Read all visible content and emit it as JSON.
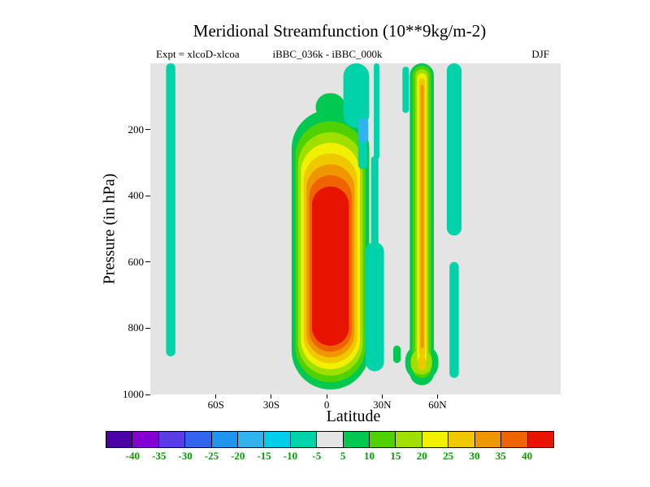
{
  "title": "Meridional Streamfunction (10**9kg/m-2)",
  "subtitle": {
    "left": "Expt = xlcoD-xlcoa",
    "center": "iBBC_036k - iBBC_000k",
    "right": "DJF"
  },
  "plot": {
    "background": "#e4e4e4"
  },
  "colorbar": {
    "labels": [
      "-40",
      "-35",
      "-30",
      "-25",
      "-20",
      "-15",
      "-10",
      "-5",
      "5",
      "10",
      "15",
      "20",
      "25",
      "30",
      "35",
      "40"
    ],
    "colors": [
      "#4e00a8",
      "#8400d2",
      "#5a3ce6",
      "#3264f0",
      "#1e96f0",
      "#30b4f0",
      "#00ccec",
      "#00d2aa",
      "#e4e4e4",
      "#00c850",
      "#50d200",
      "#a0e000",
      "#f0f000",
      "#f0c800",
      "#f09600",
      "#f06400",
      "#e61400"
    ],
    "label_color": "#00a000"
  },
  "chart_data": {
    "type": "filled_contour",
    "title": "Meridional Streamfunction (10**9kg/m-2)",
    "units": "10**9 kg/m-2",
    "season": "DJF",
    "experiment": "xlcoD-xlcoa",
    "difference": "iBBC_036k - iBBC_000k",
    "xlabel": "Latitude",
    "ylabel": "Pressure (in hPa)",
    "x_axis": {
      "ticks": [
        {
          "label": "60S",
          "value": -60
        },
        {
          "label": "30S",
          "value": -30
        },
        {
          "label": "0",
          "value": 0
        },
        {
          "label": "30N",
          "value": 30
        },
        {
          "label": "60N",
          "value": 60
        }
      ],
      "zero_fraction": 0.43,
      "fraction_per_degree": 0.0045
    },
    "y_axis": {
      "ticks": [
        {
          "label": "200",
          "value": 200
        },
        {
          "label": "400",
          "value": 400
        },
        {
          "label": "600",
          "value": 600
        },
        {
          "label": "800",
          "value": 800
        },
        {
          "label": "1000",
          "value": 1000
        }
      ],
      "range": [
        0,
        1000
      ]
    },
    "contour_levels": [
      -40,
      -35,
      -30,
      -25,
      -20,
      -15,
      -10,
      -5,
      5,
      10,
      15,
      20,
      25,
      30,
      35,
      40
    ],
    "features": [
      {
        "name": "antarctic-negative-stripe",
        "value": -7,
        "lat": [
          -87,
          -82
        ],
        "p": [
          0,
          885
        ]
      },
      {
        "name": "hadley-cell-level-5",
        "value": 7,
        "lat": [
          -19,
          23
        ],
        "p": [
          140,
          985
        ]
      },
      {
        "name": "hadley-cell-top-nub",
        "value": 7,
        "lat": [
          -6,
          10
        ],
        "p": [
          90,
          175
        ]
      },
      {
        "name": "hadley-cell-level-10",
        "value": 12,
        "lat": [
          -17,
          21
        ],
        "p": [
          175,
          963
        ]
      },
      {
        "name": "hadley-cell-level-15",
        "value": 17,
        "lat": [
          -15.5,
          19.5
        ],
        "p": [
          208,
          943
        ]
      },
      {
        "name": "hadley-cell-level-20",
        "value": 22,
        "lat": [
          -14,
          18
        ],
        "p": [
          240,
          924
        ]
      },
      {
        "name": "hadley-cell-level-25",
        "value": 27,
        "lat": [
          -12.5,
          16.5
        ],
        "p": [
          272,
          906
        ]
      },
      {
        "name": "hadley-cell-level-30",
        "value": 32,
        "lat": [
          -11,
          15
        ],
        "p": [
          305,
          888
        ]
      },
      {
        "name": "hadley-cell-level-35",
        "value": 37,
        "lat": [
          -9.5,
          13.5
        ],
        "p": [
          338,
          871
        ]
      },
      {
        "name": "hadley-cell-level-40",
        "value": 42,
        "lat": [
          -8,
          12
        ],
        "p": [
          372,
          853
        ]
      },
      {
        "name": "tropical-upper-negative-blob",
        "value": -7,
        "lat": [
          9,
          23
        ],
        "p": [
          0,
          195
        ]
      },
      {
        "name": "tropical-upper-negative-stalk",
        "value": -7,
        "lat": [
          17,
          22
        ],
        "p": [
          150,
          320
        ]
      },
      {
        "name": "tropical-upper-blue-spot",
        "value": -17,
        "lat": [
          17,
          22.5
        ],
        "p": [
          165,
          240
        ]
      },
      {
        "name": "subtropical-negative-spike",
        "value": -7,
        "lat": [
          25.5,
          28.5
        ],
        "p": [
          0,
          290
        ]
      },
      {
        "name": "subtropical-negative-link",
        "value": -7,
        "lat": [
          24,
          28
        ],
        "p": [
          280,
          565
        ]
      },
      {
        "name": "subtropical-negative-bulge",
        "value": -7,
        "lat": [
          21,
          31
        ],
        "p": [
          540,
          930
        ]
      },
      {
        "name": "midlatitude-negative-wisp",
        "value": -7,
        "lat": [
          41,
          44.5
        ],
        "p": [
          10,
          150
        ]
      },
      {
        "name": "midlatitude-green-dot",
        "value": 7,
        "lat": [
          36,
          40
        ],
        "p": [
          852,
          905
        ]
      },
      {
        "name": "ferrel-stripe-level-5",
        "value": 7,
        "lat": [
          45,
          58
        ],
        "p": [
          0,
          972
        ]
      },
      {
        "name": "ferrel-stripe-bottom-bulge-5",
        "value": 7,
        "lat": [
          42.5,
          60.5
        ],
        "p": [
          848,
          958
        ]
      },
      {
        "name": "ferrel-stripe-level-10",
        "value": 12,
        "lat": [
          46.5,
          56.5
        ],
        "p": [
          8,
          950
        ]
      },
      {
        "name": "ferrel-stripe-level-15",
        "value": 17,
        "lat": [
          48,
          55
        ],
        "p": [
          18,
          930
        ]
      },
      {
        "name": "ferrel-stripe-bottom-bulge-15",
        "value": 17,
        "lat": [
          45.5,
          57
        ],
        "p": [
          865,
          940
        ]
      },
      {
        "name": "ferrel-stripe-level-20",
        "value": 22,
        "lat": [
          49,
          54
        ],
        "p": [
          30,
          908
        ]
      },
      {
        "name": "ferrel-stripe-level-25",
        "value": 27,
        "lat": [
          50,
          53.2
        ],
        "p": [
          45,
          885
        ]
      },
      {
        "name": "ferrel-stripe-level-30",
        "value": 32,
        "lat": [
          50.8,
          52.6
        ],
        "p": [
          65,
          860
        ]
      },
      {
        "name": "ferrel-stripe-bottom-dot-25",
        "value": 27,
        "lat": [
          49.5,
          53.5
        ],
        "p": [
          883,
          928
        ]
      },
      {
        "name": "polar-negative-stripe-upper",
        "value": -7,
        "lat": [
          65,
          73
        ],
        "p": [
          0,
          520
        ]
      },
      {
        "name": "polar-negative-stripe-lower",
        "value": -7,
        "lat": [
          66.5,
          71.5
        ],
        "p": [
          600,
          950
        ]
      }
    ]
  }
}
